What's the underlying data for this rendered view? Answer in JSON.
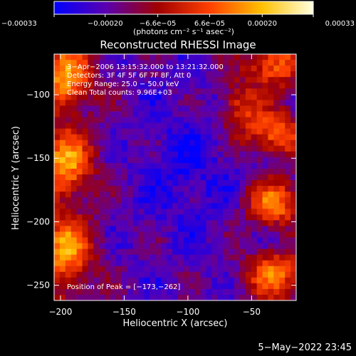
{
  "chart_data": {
    "type": "heatmap",
    "title": "Reconstructed RHESSI Image",
    "xlabel": "Heliocentric X (arcsec)",
    "ylabel": "Heliocentric Y (arcsec)",
    "xlim": [
      -205,
      -15
    ],
    "ylim": [
      -262,
      -68
    ],
    "x_ticks": [
      {
        "value": -200,
        "label": "−200"
      },
      {
        "value": -150,
        "label": "−150"
      },
      {
        "value": -100,
        "label": "−100"
      },
      {
        "value": -50,
        "label": "−50"
      }
    ],
    "y_ticks": [
      {
        "value": -100,
        "label": "−100"
      },
      {
        "value": -150,
        "label": "−150"
      },
      {
        "value": -200,
        "label": "−200"
      },
      {
        "value": -250,
        "label": "−250"
      }
    ],
    "colorbar": {
      "range": [
        -0.00033,
        0.00033
      ],
      "unit_label": "(photons cm⁻² s⁻¹ asec⁻²)",
      "ticks": [
        {
          "value": -0.00033,
          "label": "−0.00033"
        },
        {
          "value": -0.0002,
          "label": "−0.00020"
        },
        {
          "value": -6.6e-05,
          "label": "−6.6e−05"
        },
        {
          "value": 6.6e-05,
          "label": "6.6e−05"
        },
        {
          "value": 0.0002,
          "label": "0.00020"
        },
        {
          "value": 0.00033,
          "label": "0.00033"
        }
      ],
      "colors": [
        "#0000ff",
        "#5a00b0",
        "#a00000",
        "#ff4000",
        "#ffc000",
        "#ffffe0"
      ]
    },
    "annotations": [
      "3−Apr−2006 13:15:32.000 to 13:21:32.000",
      "Detectors: 3F 4F 5F 6F 7F 8F, Att 0",
      "Energy Range: 25.0 − 50.0 keV",
      "Clean    Total counts: 9.96E+03"
    ],
    "peak_label": "Position of Peak = [−173,−262]",
    "peak": [
      -173,
      -262
    ],
    "total_counts": 9960
  },
  "footer_date": "5−May−2022 23:45"
}
